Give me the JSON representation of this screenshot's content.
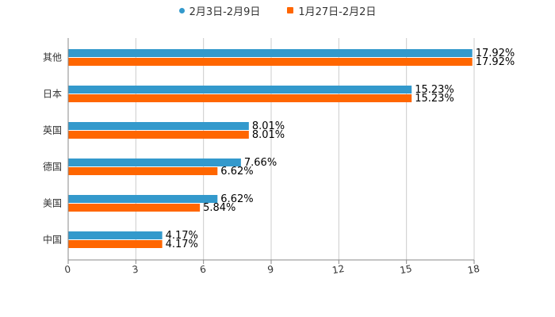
{
  "colors": {
    "series1": "#3399CC",
    "series2": "#FF6600",
    "grid": "#CCCCCC",
    "axis": "#888888",
    "text": "#333333"
  },
  "legend": {
    "series1_label": "2月3日-2月9日",
    "series2_label": "1月27日-2月2日"
  },
  "chart_data": {
    "type": "bar",
    "orientation": "horizontal",
    "title": "",
    "xlabel": "",
    "ylabel": "",
    "xlim": [
      0,
      18
    ],
    "x_ticks": [
      0,
      3,
      6,
      9,
      12,
      15,
      18
    ],
    "x_tick_labels": [
      "0",
      "3",
      "6",
      "9",
      "12",
      "15",
      "18"
    ],
    "grid": true,
    "legend_position": "top-center",
    "categories": [
      "其他",
      "日本",
      "英国",
      "德国",
      "美国",
      "中国"
    ],
    "series": [
      {
        "name": "2月3日-2月9日",
        "values": [
          17.92,
          15.23,
          8.01,
          7.66,
          6.62,
          4.17
        ],
        "labels": [
          "17.92%",
          "15.23%",
          "8.01%",
          "7.66%",
          "6.62%",
          "4.17%"
        ]
      },
      {
        "name": "1月27日-2月2日",
        "values": [
          17.92,
          15.23,
          8.01,
          6.62,
          5.84,
          4.17
        ],
        "labels": [
          "17.92%",
          "15.23%",
          "8.01%",
          "6.62%",
          "5.84%",
          "4.17%"
        ]
      }
    ]
  }
}
